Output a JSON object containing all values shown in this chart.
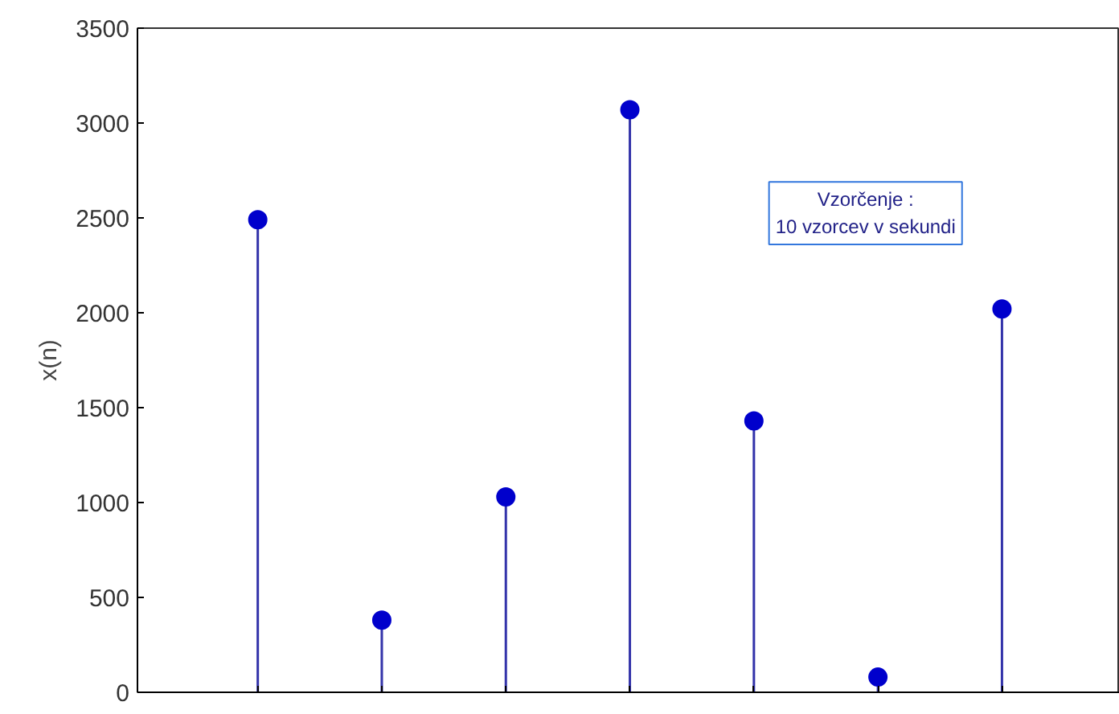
{
  "chart_data": {
    "type": "lollipop",
    "ylabel": "x(n)",
    "categories": [
      null,
      null,
      null,
      null,
      null,
      null,
      null
    ],
    "values": [
      2490,
      380,
      1030,
      3070,
      1430,
      80,
      2020
    ],
    "color": "#0000cc",
    "ylim": [
      0,
      3500
    ],
    "yticks": [
      0,
      500,
      1000,
      1500,
      2000,
      2500,
      3000,
      3500
    ],
    "grid": false,
    "tick_labels": "y",
    "annotations": [
      "Vzorčenje :\n10 vzorcev v sekundi"
    ]
  }
}
